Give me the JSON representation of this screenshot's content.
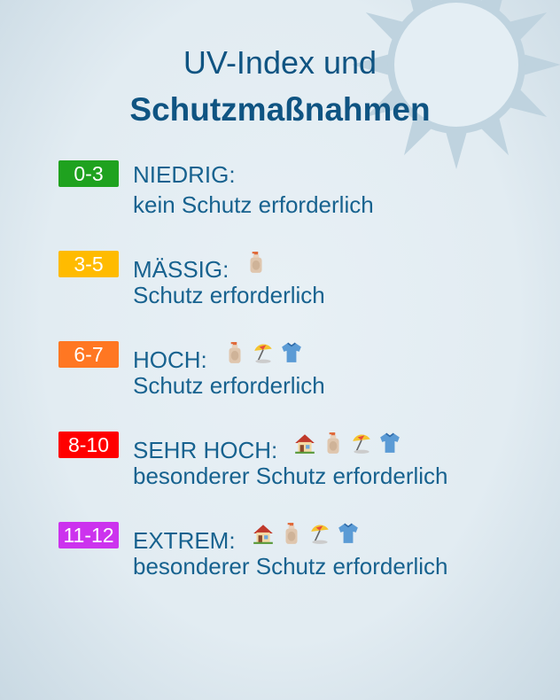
{
  "title": {
    "line1": "UV-Index und",
    "line2": "Schutzmaßnahmen"
  },
  "levels": [
    {
      "range": "0-3",
      "label": "NIEDRIG:",
      "text": "kein Schutz erforderlich",
      "color": "#1fa21f",
      "icons": []
    },
    {
      "range": "3-5",
      "label": "MÄSSIG:",
      "text": "Schutz erforderlich",
      "color": "#ffbb00",
      "icons": [
        "lotion-bottle"
      ]
    },
    {
      "range": "6-7",
      "label": "HOCH:",
      "text": "Schutz erforderlich",
      "color": "#ff7722",
      "icons": [
        "lotion-bottle",
        "beach-umbrella",
        "shirt"
      ]
    },
    {
      "range": "8-10",
      "label": "SEHR HOCH:",
      "text": "besonderer Schutz erforderlich",
      "color": "#ff0000",
      "icons": [
        "house",
        "lotion-bottle",
        "beach-umbrella",
        "shirt"
      ]
    },
    {
      "range": "11-12",
      "label": "EXTREM:",
      "text": "besonderer Schutz erforderlich",
      "color": "#cc33ee",
      "icons": [
        "house",
        "lotion-bottle",
        "beach-umbrella",
        "shirt"
      ]
    }
  ]
}
